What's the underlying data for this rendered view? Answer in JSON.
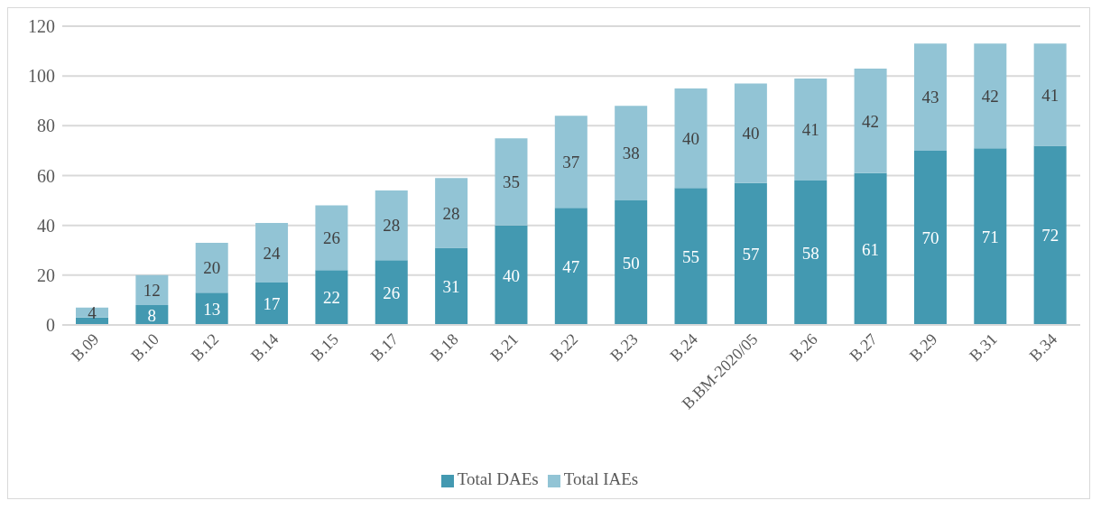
{
  "chart_data": {
    "type": "bar",
    "stacked": true,
    "categories": [
      "B.09",
      "B.10",
      "B.12",
      "B.14",
      "B.15",
      "B.17",
      "B.18",
      "B.21",
      "B.22",
      "B.23",
      "B.24",
      "B.BM-2020/05",
      "B.26",
      "B.27",
      "B.29",
      "B.31",
      "B.34"
    ],
    "series": [
      {
        "name": "Total DAEs",
        "color": "#4399b1",
        "values": [
          3,
          8,
          13,
          17,
          22,
          26,
          31,
          40,
          47,
          50,
          55,
          57,
          58,
          61,
          70,
          71,
          72
        ],
        "value_labels": [
          null,
          "8",
          "13",
          "17",
          "22",
          "26",
          "31",
          "40",
          "47",
          "50",
          "55",
          "57",
          "58",
          "61",
          "70",
          "71",
          "72"
        ]
      },
      {
        "name": "Total IAEs",
        "color": "#92c4d5",
        "values": [
          4,
          12,
          20,
          24,
          26,
          28,
          28,
          35,
          37,
          38,
          40,
          40,
          41,
          42,
          43,
          42,
          41
        ],
        "value_labels": [
          "4",
          "12",
          "20",
          "24",
          "26",
          "28",
          "28",
          "35",
          "37",
          "38",
          "40",
          "40",
          "41",
          "42",
          "43",
          "42",
          "41"
        ]
      }
    ],
    "ylim": [
      0,
      120
    ],
    "yticks": [
      0,
      20,
      40,
      60,
      80,
      100,
      120
    ],
    "grid": "y",
    "legend": "bottom"
  }
}
